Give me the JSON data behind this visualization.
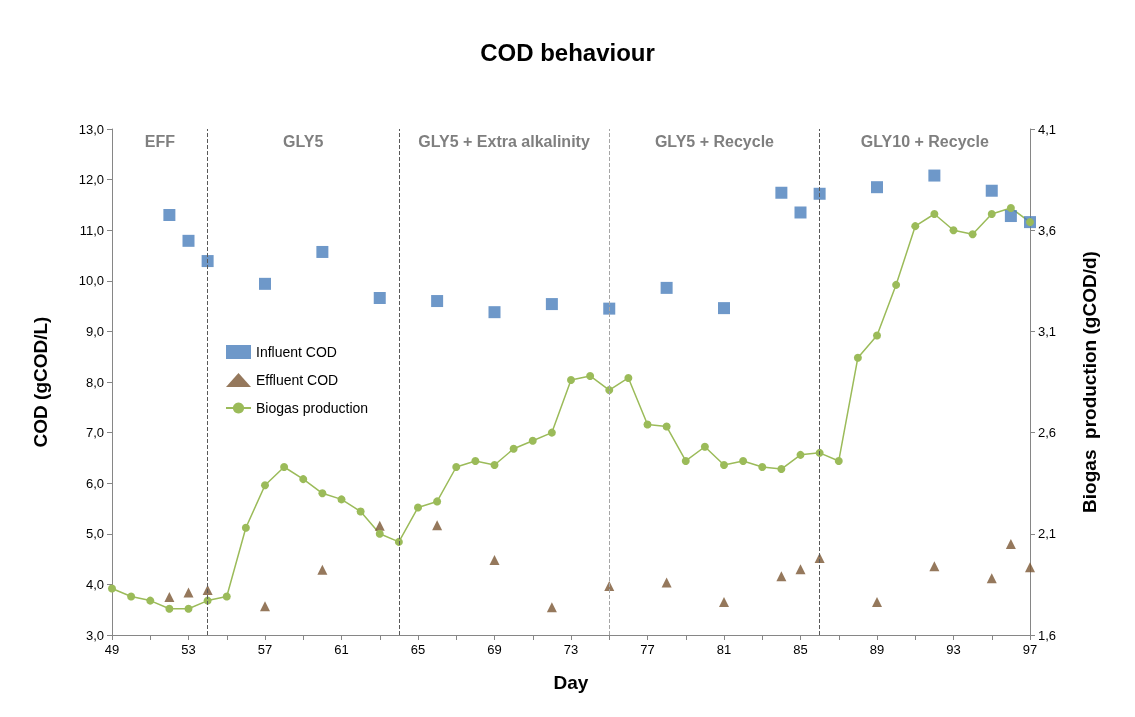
{
  "chart_data": {
    "type": "scatter",
    "title": "COD behaviour",
    "xlabel": "Day",
    "ylabel": "COD (gCOD/L)",
    "y2label": "Biogas  production (gCOD/d)",
    "xlim": [
      49,
      97
    ],
    "xticks": [
      49,
      {
        "value": 51,
        "label": null
      },
      53,
      {
        "value": 55,
        "label": null
      },
      57,
      {
        "value": 59,
        "label": null
      },
      61,
      {
        "value": 63,
        "label": null
      },
      65,
      {
        "value": 67,
        "label": null
      },
      69,
      {
        "value": 71,
        "label": null
      },
      73,
      {
        "value": 75,
        "label": null
      },
      77,
      {
        "value": 79,
        "label": null
      },
      81,
      {
        "value": 83,
        "label": null
      },
      85,
      {
        "value": 87,
        "label": null
      },
      89,
      {
        "value": 91,
        "label": null
      },
      93,
      {
        "value": 95,
        "label": null
      },
      97
    ],
    "ylim": [
      3,
      13
    ],
    "yticks": [
      {
        "value": 3,
        "label": "3,0"
      },
      {
        "value": 4,
        "label": "4,0"
      },
      {
        "value": 5,
        "label": "5,0"
      },
      {
        "value": 6,
        "label": "6,0"
      },
      {
        "value": 7,
        "label": "7,0"
      },
      {
        "value": 8,
        "label": "8,0"
      },
      {
        "value": 9,
        "label": "9,0"
      },
      {
        "value": 10,
        "label": "10,0"
      },
      {
        "value": 11,
        "label": "11,0"
      },
      {
        "value": 12,
        "label": "12,0"
      },
      {
        "value": 13,
        "label": "13,0"
      }
    ],
    "y2lim": [
      1.6,
      4.1
    ],
    "y2ticks": [
      {
        "value": 1.6,
        "label": "1,6"
      },
      {
        "value": 2.1,
        "label": "2,1"
      },
      {
        "value": 2.6,
        "label": "2,6"
      },
      {
        "value": 3.1,
        "label": "3,1"
      },
      {
        "value": 3.6,
        "label": "3,6"
      },
      {
        "value": 4.1,
        "label": "4,1"
      }
    ],
    "grid": false,
    "legend": "left",
    "series": [
      {
        "name": "Influent COD",
        "marker": "square",
        "color": "#4a7ebb",
        "x": [
          52,
          53,
          54,
          57,
          60,
          63,
          66,
          69,
          72,
          75,
          78,
          81,
          84,
          85,
          86,
          89,
          92,
          95,
          96,
          97
        ],
        "values": [
          11.3,
          10.79,
          10.39,
          9.94,
          10.57,
          9.66,
          9.6,
          9.38,
          9.54,
          9.45,
          9.86,
          9.46,
          11.74,
          11.35,
          11.72,
          11.85,
          12.08,
          11.78,
          11.28,
          11.16
        ]
      },
      {
        "name": "Effluent COD",
        "marker": "triangle",
        "color": "#7b5633",
        "x": [
          52,
          53,
          54,
          57,
          60,
          63,
          66,
          69,
          72,
          75,
          78,
          81,
          84,
          85,
          86,
          89,
          92,
          95,
          96,
          97
        ],
        "values": [
          3.75,
          3.84,
          3.89,
          3.57,
          4.29,
          5.16,
          5.17,
          4.48,
          3.55,
          3.97,
          4.04,
          3.65,
          4.16,
          4.3,
          4.52,
          3.65,
          4.36,
          4.12,
          4.8,
          4.34
        ]
      },
      {
        "name": "Biogas production",
        "type": "line",
        "marker": "circle",
        "line_style": "solid",
        "axis": "y2",
        "color": "#9bbb59",
        "x": [
          49,
          50,
          51,
          52,
          53,
          54,
          55,
          56,
          57,
          58,
          59,
          60,
          61,
          62,
          63,
          64,
          65,
          66,
          67,
          68,
          69,
          70,
          71,
          72,
          73,
          74,
          75,
          76,
          77,
          78,
          79,
          80,
          81,
          82,
          83,
          84,
          85,
          86,
          87,
          88,
          89,
          90,
          91,
          92,
          93,
          94,
          95,
          96,
          97
        ],
        "values": [
          1.83,
          1.79,
          1.77,
          1.73,
          1.73,
          1.77,
          1.79,
          2.13,
          2.34,
          2.43,
          2.37,
          2.3,
          2.27,
          2.21,
          2.1,
          2.06,
          2.23,
          2.26,
          2.43,
          2.46,
          2.44,
          2.52,
          2.56,
          2.6,
          2.86,
          2.88,
          2.81,
          2.87,
          2.64,
          2.63,
          2.46,
          2.53,
          2.44,
          2.46,
          2.43,
          2.42,
          2.49,
          2.5,
          2.46,
          2.97,
          3.08,
          3.33,
          3.62,
          3.68,
          3.6,
          3.58,
          3.68,
          3.71,
          3.64
        ]
      }
    ],
    "ref_lines": [
      {
        "axis": "x",
        "value": 54,
        "color": "#595959",
        "line_style": "dashed"
      },
      {
        "axis": "x",
        "value": 64,
        "color": "#595959",
        "line_style": "dashed"
      },
      {
        "axis": "x",
        "value": 75,
        "color": "#a6a6a6",
        "line_style": "dashed"
      },
      {
        "axis": "x",
        "value": 86,
        "color": "#595959",
        "line_style": "dashed"
      }
    ],
    "annotations": [
      "EFF",
      "GLY5",
      "GLY5 + Extra alkalinity",
      "GLY5 + Recycle",
      "GLY10 + Recycle"
    ]
  }
}
